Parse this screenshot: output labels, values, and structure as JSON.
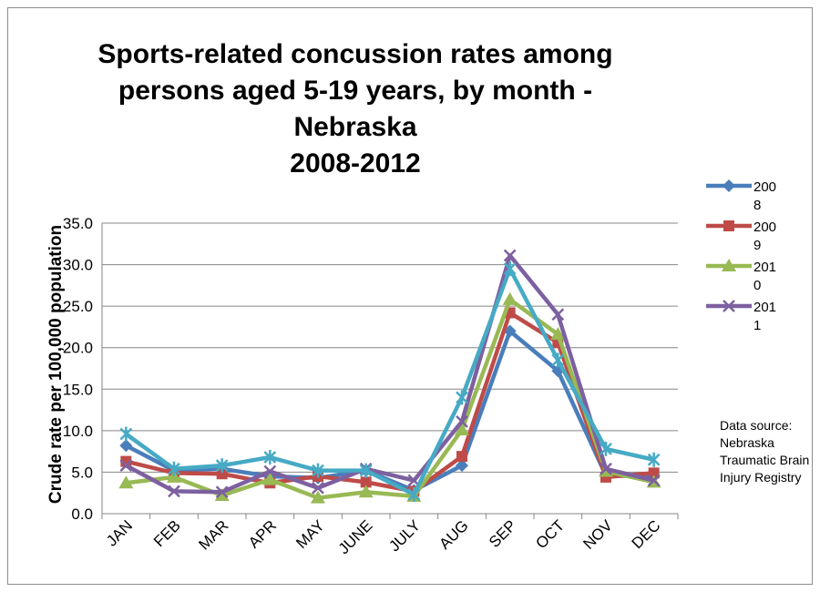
{
  "chart_data": {
    "type": "line",
    "title_lines": [
      "Sports-related concussion rates among",
      "persons aged  5-19 years, by month -",
      "Nebraska",
      "2008-2012"
    ],
    "xlabel": "",
    "ylabel": "Crude rate per 100,000 population",
    "ylim": [
      0,
      35
    ],
    "yticks": [
      "0.0",
      "5.0",
      "10.0",
      "15.0",
      "20.0",
      "25.0",
      "30.0",
      "35.0"
    ],
    "grid": true,
    "legend_position": "right",
    "categories": [
      "JAN",
      "FEB",
      "MAR",
      "APR",
      "MAY",
      "JUNE",
      "JULY",
      "AUG",
      "SEP",
      "OCT",
      "NOV",
      "DEC"
    ],
    "series": [
      {
        "name": "2008",
        "legend_lines": [
          "200",
          "8"
        ],
        "color": "#4a7ebb",
        "marker": "diamond",
        "values": [
          8.2,
          5.2,
          5.4,
          4.5,
          4.3,
          5.2,
          2.8,
          5.8,
          22.0,
          17.2,
          4.6,
          4.5
        ]
      },
      {
        "name": "2009",
        "legend_lines": [
          "200",
          "9"
        ],
        "color": "#be4b48",
        "marker": "square",
        "values": [
          6.3,
          4.9,
          4.8,
          3.7,
          4.5,
          3.8,
          2.7,
          6.9,
          24.2,
          20.6,
          4.4,
          4.9
        ]
      },
      {
        "name": "2010",
        "legend_lines": [
          "201",
          "0"
        ],
        "color": "#98b954",
        "marker": "triangle",
        "values": [
          3.7,
          4.4,
          2.2,
          4.1,
          1.9,
          2.6,
          2.1,
          10.1,
          25.8,
          21.6,
          5.1,
          3.8
        ]
      },
      {
        "name": "2011",
        "legend_lines": [
          "201",
          "1"
        ],
        "color": "#7d60a0",
        "marker": "x",
        "values": [
          5.8,
          2.7,
          2.6,
          5.1,
          3.1,
          5.4,
          4.0,
          11.1,
          31.1,
          24.0,
          5.4,
          4.0
        ]
      },
      {
        "name": "",
        "legend_lines": [],
        "color": "#46aac5",
        "marker": "star",
        "values": [
          9.6,
          5.4,
          5.8,
          6.8,
          5.2,
          5.2,
          2.3,
          14.0,
          29.5,
          18.5,
          7.8,
          6.5
        ]
      }
    ],
    "source_note": "Data source: Nebraska Traumatic Brain Injury Registry"
  }
}
